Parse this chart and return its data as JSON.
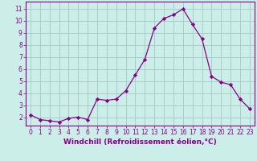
{
  "x": [
    0,
    1,
    2,
    3,
    4,
    5,
    6,
    7,
    8,
    9,
    10,
    11,
    12,
    13,
    14,
    15,
    16,
    17,
    18,
    19,
    20,
    21,
    22,
    23
  ],
  "y": [
    2.2,
    1.8,
    1.7,
    1.6,
    1.9,
    2.0,
    1.8,
    3.5,
    3.4,
    3.5,
    4.2,
    5.5,
    6.8,
    9.4,
    10.2,
    10.5,
    11.0,
    9.7,
    8.5,
    5.4,
    4.9,
    4.7,
    3.5,
    2.7
  ],
  "line_color": "#880088",
  "marker": "D",
  "marker_size": 2.2,
  "bg_color": "#cceee8",
  "grid_color": "#aacccc",
  "xlabel": "Windchill (Refroidissement éolien,°C)",
  "xlabel_color": "#880088",
  "ylabel_ticks": [
    2,
    3,
    4,
    5,
    6,
    7,
    8,
    9,
    10,
    11
  ],
  "xlim": [
    -0.5,
    23.5
  ],
  "ylim": [
    1.3,
    11.6
  ],
  "xticks": [
    0,
    1,
    2,
    3,
    4,
    5,
    6,
    7,
    8,
    9,
    10,
    11,
    12,
    13,
    14,
    15,
    16,
    17,
    18,
    19,
    20,
    21,
    22,
    23
  ],
  "tick_fontsize": 5.5,
  "label_fontsize": 6.5
}
